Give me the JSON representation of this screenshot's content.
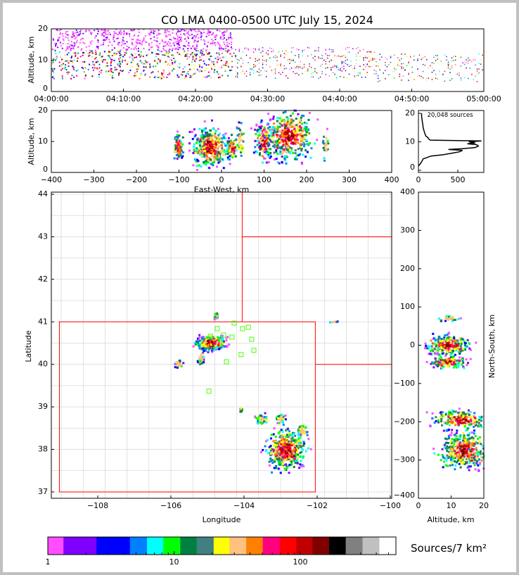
{
  "title": "CO LMA 0400-0500 UTC July 15, 2024",
  "chart_data": [
    {
      "id": "time_height",
      "type": "scatter",
      "xlabel": "",
      "ylabel": "Altitude, km",
      "xlim_minutes_after_0400": [
        0,
        60
      ],
      "ylim": [
        0,
        20
      ],
      "xticks": [
        0,
        10,
        20,
        30,
        40,
        50,
        60
      ],
      "xticklabels": [
        "04:00:00",
        "04:10:00",
        "04:20:00",
        "04:30:00",
        "04:40:00",
        "04:50:00",
        "05:00:00"
      ],
      "yticks": [
        0,
        10,
        20
      ],
      "yticklabels": [
        "0",
        "10",
        "20"
      ],
      "segments": [
        {
          "t": [
            0,
            25
          ],
          "alt": [
            4,
            20
          ],
          "density": 1.0
        },
        {
          "t": [
            25,
            45
          ],
          "alt": [
            4,
            14
          ],
          "density": 0.45
        },
        {
          "t": [
            45,
            60
          ],
          "alt": [
            3,
            12
          ],
          "density": 0.3
        }
      ]
    },
    {
      "id": "ew_altitude",
      "type": "scatter",
      "xlabel": "East-West, km",
      "ylabel": "Altitude, km",
      "xlim": [
        -400,
        400
      ],
      "ylim": [
        0,
        20
      ],
      "xticks": [
        -400,
        -300,
        -200,
        -100,
        0,
        100,
        200,
        300,
        400
      ],
      "xticklabels": [
        "−400",
        "−300",
        "−200",
        "−100",
        "0",
        "100",
        "200",
        "300",
        "400"
      ],
      "yticks": [
        0,
        10,
        20
      ],
      "yticklabels": [
        "0",
        "10",
        "20"
      ],
      "clusters": [
        {
          "x": -100,
          "sx": 6,
          "y": 8,
          "sy": 2,
          "n": 80
        },
        {
          "x": -25,
          "sx": 20,
          "y": 8,
          "sy": 3,
          "n": 380
        },
        {
          "x": 25,
          "sx": 6,
          "y": 8,
          "sy": 2,
          "n": 60
        },
        {
          "x": 45,
          "sx": 4,
          "y": 10,
          "sy": 3,
          "n": 40
        },
        {
          "x": 100,
          "sx": 10,
          "y": 10,
          "sy": 3,
          "n": 150
        },
        {
          "x": 160,
          "sx": 25,
          "y": 12,
          "sy": 4,
          "n": 420
        },
        {
          "x": 245,
          "sx": 3,
          "y": 9,
          "sy": 2,
          "n": 25
        }
      ]
    },
    {
      "id": "altitude_histogram",
      "type": "line",
      "annotation": "20,048 sources",
      "xlim": [
        0,
        830
      ],
      "ylim": [
        -0.75,
        21
      ],
      "xticks": [
        0,
        500
      ],
      "xticklabels": [
        "0",
        "500"
      ],
      "yticks": [
        0,
        10,
        20
      ],
      "yticklabels": [
        "0",
        "10",
        "20"
      ],
      "altitude_km": [
        1.5,
        2,
        3,
        4,
        5,
        5.5,
        6,
        6.5,
        7,
        7.3,
        7.6,
        8,
        8.5,
        9,
        9.3,
        9.6,
        10,
        10.3,
        10.6,
        11,
        11.5,
        12,
        13,
        14,
        15,
        16,
        17,
        18,
        19,
        20
      ],
      "counts": [
        0,
        15,
        40,
        60,
        160,
        320,
        420,
        520,
        560,
        380,
        560,
        720,
        760,
        740,
        620,
        720,
        640,
        800,
        150,
        130,
        120,
        95,
        80,
        70,
        60,
        55,
        50,
        45,
        40,
        40
      ]
    },
    {
      "id": "plan_view_map",
      "type": "scatter",
      "xlabel": "Longitude",
      "ylabel": "Latitude",
      "xlim": [
        -109.27,
        -99.96
      ],
      "ylim": [
        36.85,
        44.05
      ],
      "xticks": [
        -108,
        -106,
        -104,
        -102,
        -100
      ],
      "xticklabels": [
        "−108",
        "−106",
        "−104",
        "−102",
        "−100"
      ],
      "yticks": [
        37,
        38,
        39,
        40,
        41,
        42,
        43,
        44
      ],
      "yticklabels": [
        "37",
        "38",
        "39",
        "40",
        "41",
        "42",
        "43",
        "44"
      ],
      "state_borders": [
        [
          [
            -109.05,
            37
          ],
          [
            -102.05,
            37
          ],
          [
            -102.05,
            41
          ],
          [
            -109.05,
            41
          ],
          [
            -109.05,
            37
          ]
        ],
        [
          [
            -104.05,
            41
          ],
          [
            -104.05,
            44.05
          ]
        ],
        [
          [
            -104.05,
            43
          ],
          [
            -99.96,
            43
          ]
        ],
        [
          [
            -102.05,
            40
          ],
          [
            -99.96,
            40
          ]
        ]
      ],
      "stations": [
        [
          -104.73,
          40.84
        ],
        [
          -104.27,
          40.97
        ],
        [
          -104.04,
          40.84
        ],
        [
          -103.88,
          40.87
        ],
        [
          -104.56,
          40.69
        ],
        [
          -104.33,
          40.64
        ],
        [
          -103.79,
          40.59
        ],
        [
          -104.92,
          40.66
        ],
        [
          -104.08,
          40.23
        ],
        [
          -103.73,
          40.33
        ],
        [
          -104.48,
          40.06
        ],
        [
          -104.96,
          39.37
        ]
      ],
      "clusters": [
        {
          "x": -104.9,
          "sx": 0.18,
          "y": 40.5,
          "sy": 0.08,
          "n": 420
        },
        {
          "x": -104.75,
          "sx": 0.03,
          "y": 41.12,
          "sy": 0.04,
          "n": 20
        },
        {
          "x": -105.77,
          "sx": 0.05,
          "y": 40.0,
          "sy": 0.04,
          "n": 30
        },
        {
          "x": -105.17,
          "sx": 0.04,
          "y": 40.15,
          "sy": 0.08,
          "n": 30
        },
        {
          "x": -104.08,
          "sx": 0.02,
          "y": 38.92,
          "sy": 0.03,
          "n": 10
        },
        {
          "x": -103.5,
          "sx": 0.08,
          "y": 38.7,
          "sy": 0.06,
          "n": 50
        },
        {
          "x": -103.0,
          "sx": 0.06,
          "y": 38.72,
          "sy": 0.06,
          "n": 40
        },
        {
          "x": -102.85,
          "sx": 0.25,
          "y": 38.0,
          "sy": 0.22,
          "n": 420
        },
        {
          "x": -102.4,
          "sx": 0.08,
          "y": 38.44,
          "sy": 0.06,
          "n": 50
        },
        {
          "x": -101.55,
          "sx": 0.05,
          "y": 41.0,
          "sy": 0.01,
          "n": 8
        }
      ]
    },
    {
      "id": "ns_altitude",
      "type": "scatter",
      "xlabel": "Altitude, km",
      "ylabel": "North-South, km",
      "xlim": [
        0,
        20
      ],
      "ylim": [
        -400,
        400
      ],
      "xticks": [
        0,
        10,
        20
      ],
      "xticklabels": [
        "0",
        "10",
        "20"
      ],
      "yticks": [
        -400,
        -300,
        -200,
        -100,
        0,
        100,
        200,
        300,
        400
      ],
      "yticklabels": [
        "−400",
        "−300",
        "−200",
        "−100",
        "0",
        "100",
        "200",
        "300",
        "400"
      ],
      "clusters": [
        {
          "x": 9,
          "sx": 1.5,
          "y": 70,
          "sy": 4,
          "n": 30
        },
        {
          "x": 9,
          "sx": 3,
          "y": 0,
          "sy": 12,
          "n": 320
        },
        {
          "x": 9,
          "sx": 2.5,
          "y": -45,
          "sy": 8,
          "n": 120
        },
        {
          "x": 13,
          "sx": 4,
          "y": -195,
          "sy": 12,
          "n": 200
        },
        {
          "x": 14,
          "sx": 3.5,
          "y": -275,
          "sy": 22,
          "n": 380
        }
      ]
    },
    {
      "id": "colorbar",
      "type": "colorbar",
      "label": "Sources/7 km²",
      "scale": "log",
      "range": [
        1,
        572
      ],
      "ticks": [
        1,
        10,
        100
      ],
      "ticklabels": [
        "1",
        "10",
        "100"
      ],
      "bin_edges": [
        1,
        1.33,
        2.43,
        4.47,
        6.1,
        8.2,
        11.2,
        15.1,
        20.6,
        27.5,
        37.3,
        50.4,
        68.6,
        93,
        125,
        169,
        229,
        311,
        423,
        572
      ],
      "colors": [
        "#ff4dff",
        "#8000ff",
        "#0000ff",
        "#0080ff",
        "#00ffff",
        "#00ff00",
        "#008040",
        "#408080",
        "#ffff00",
        "#ffc080",
        "#ff8000",
        "#ff0080",
        "#ff0000",
        "#c00000",
        "#800000",
        "#000000",
        "#808080",
        "#c0c0c0",
        "#ffffff"
      ]
    }
  ]
}
